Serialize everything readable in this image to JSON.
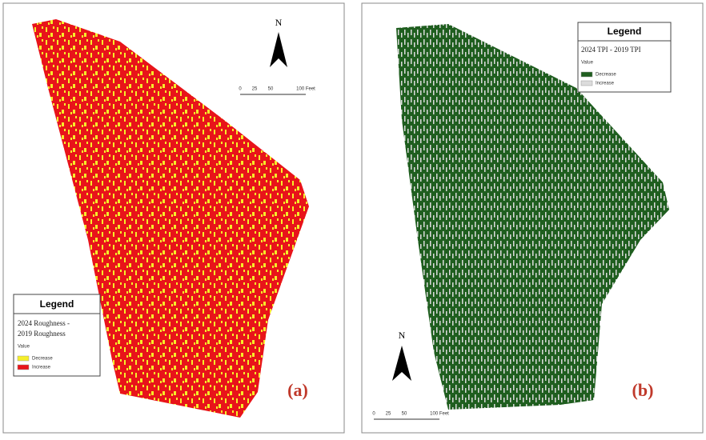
{
  "panels": [
    {
      "label": "(a)",
      "north": "N",
      "scale": [
        "0",
        "25",
        "50",
        "100 Feet"
      ],
      "legend": {
        "title": "Legend",
        "field": [
          "2024 Roughness -",
          "2019 Roughness"
        ],
        "value_heading": "Value",
        "items": [
          {
            "label": "Decrease",
            "color": "#f5ee2a"
          },
          {
            "label": "Increase",
            "color": "#e8141a"
          }
        ]
      }
    },
    {
      "label": "(b)",
      "north": "N",
      "scale": [
        "0",
        "25",
        "50",
        "100 Feet"
      ],
      "legend": {
        "title": "Legend",
        "field": [
          "2024 TPI - 2019 TPI"
        ],
        "value_heading": "Value",
        "items": [
          {
            "label": "Decrease",
            "color": "#1f5e1f"
          },
          {
            "label": "Increase",
            "color": "#dcdcdc"
          }
        ]
      }
    }
  ]
}
